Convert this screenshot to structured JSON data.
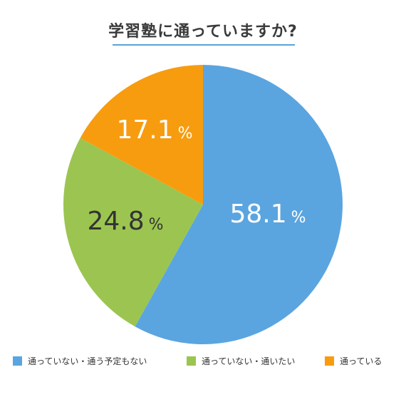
{
  "title": "学習塾に通っていますか?",
  "chart_data": {
    "type": "pie",
    "title": "学習塾に通っていますか?",
    "percent_sign": "%",
    "slices": [
      {
        "label": "通っていない・通う予定もない",
        "value": 58.1,
        "value_text": "58.1",
        "color": "#5aa5e0",
        "text_color": "#ffffff"
      },
      {
        "label": "通っていない・通いたい",
        "value": 24.8,
        "value_text": "24.8",
        "color": "#9bc550",
        "text_color": "#333333"
      },
      {
        "label": "通っている",
        "value": 17.1,
        "value_text": "17.1",
        "color": "#f79c0f",
        "text_color": "#ffffff"
      }
    ],
    "legend_position": "bottom",
    "start_angle": "12 o'clock",
    "direction": "clockwise"
  }
}
